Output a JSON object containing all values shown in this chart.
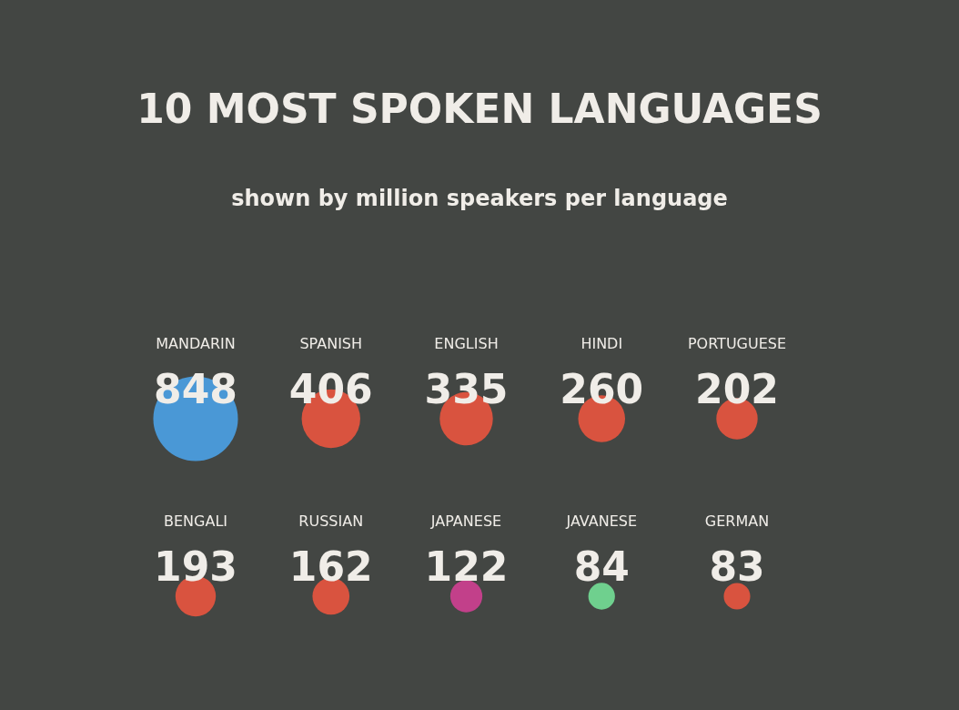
{
  "chart_data": {
    "type": "other",
    "title": "10 MOST SPOKEN LANGUAGES",
    "subtitle": "shown by million speakers per language",
    "categories": [
      "MANDARIN",
      "SPANISH",
      "ENGLISH",
      "HINDI",
      "PORTUGUESE",
      "BENGALI",
      "RUSSIAN",
      "JAPANESE",
      "JAVANESE",
      "GERMAN"
    ],
    "values": [
      848,
      406,
      335,
      260,
      202,
      193,
      162,
      122,
      84,
      83
    ],
    "colors": [
      "#4a98d6",
      "#d9533f",
      "#d9533f",
      "#d9533f",
      "#d9533f",
      "#d9533f",
      "#d9533f",
      "#c2408a",
      "#6fd08e",
      "#d9533f"
    ],
    "data_labels": true
  }
}
